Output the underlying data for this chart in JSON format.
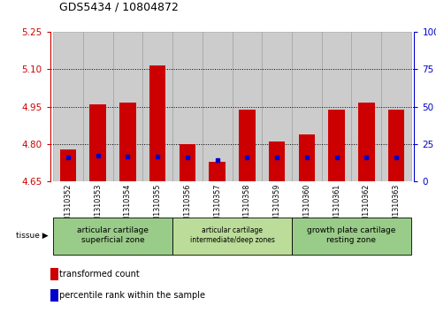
{
  "title": "GDS5434 / 10804872",
  "samples": [
    "GSM1310352",
    "GSM1310353",
    "GSM1310354",
    "GSM1310355",
    "GSM1310356",
    "GSM1310357",
    "GSM1310358",
    "GSM1310359",
    "GSM1310360",
    "GSM1310361",
    "GSM1310362",
    "GSM1310363"
  ],
  "red_values": [
    4.78,
    4.96,
    4.965,
    5.115,
    4.8,
    4.73,
    4.94,
    4.81,
    4.84,
    4.94,
    4.965,
    4.94
  ],
  "blue_values": [
    4.745,
    4.755,
    4.75,
    4.75,
    4.745,
    4.735,
    4.745,
    4.745,
    4.745,
    4.745,
    4.745,
    4.745
  ],
  "ymin": 4.65,
  "ymax": 5.25,
  "yticks": [
    4.65,
    4.8,
    4.95,
    5.1,
    5.25
  ],
  "right_yticks": [
    0,
    25,
    50,
    75,
    100
  ],
  "bar_color": "#cc0000",
  "blue_color": "#0000cc",
  "bg_color": "#ffffff",
  "plot_bg": "#ffffff",
  "axis_label_color_left": "#cc0000",
  "axis_label_color_right": "#0000cc",
  "col_bg_color": "#cccccc",
  "tissue_groups": [
    {
      "label": "articular cartilage\nsuperficial zone",
      "start": 0,
      "end": 4,
      "color": "#99dd99"
    },
    {
      "label": "articular cartilage\nintermediate/deep zones",
      "start": 4,
      "end": 8,
      "color": "#bbeeaa"
    },
    {
      "label": "growth plate cartilage\nresting zone",
      "start": 8,
      "end": 12,
      "color": "#99dd99"
    }
  ],
  "legend_red": "transformed count",
  "legend_blue": "percentile rank within the sample",
  "bar_width": 0.55
}
